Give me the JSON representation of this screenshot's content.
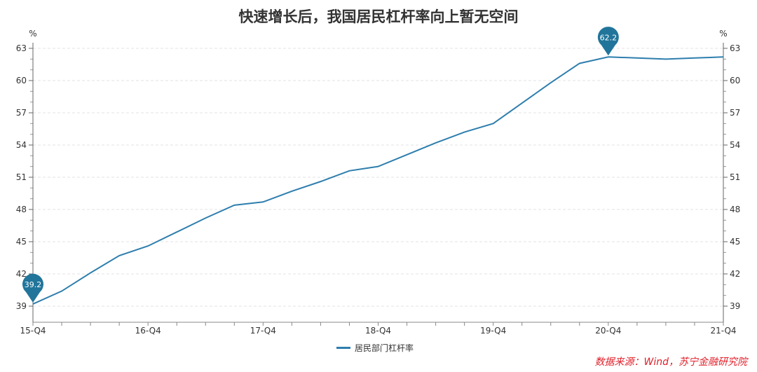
{
  "chart_data": {
    "type": "line",
    "title": "快速增长后，我国居民杠杆率向上暂无空间",
    "ylabel_left": "%",
    "ylabel_right": "%",
    "ylim": [
      39,
      63
    ],
    "yticks": [
      39,
      42,
      45,
      48,
      51,
      54,
      57,
      60,
      63
    ],
    "x_tick_labels": [
      "15-Q4",
      "16-Q4",
      "17-Q4",
      "18-Q4",
      "19-Q4",
      "20-Q4",
      "21-Q4"
    ],
    "grid": true,
    "legend_position": "bottom",
    "series": [
      {
        "name": "居民部门杠杆率",
        "color": "#2e7eae",
        "x": [
          "15-Q4",
          "16-Q1",
          "16-Q2",
          "16-Q3",
          "16-Q4",
          "17-Q1",
          "17-Q2",
          "17-Q3",
          "17-Q4",
          "18-Q1",
          "18-Q2",
          "18-Q3",
          "18-Q4",
          "19-Q1",
          "19-Q2",
          "19-Q3",
          "19-Q4",
          "20-Q1",
          "20-Q2",
          "20-Q3",
          "20-Q4",
          "21-Q1",
          "21-Q2",
          "21-Q3",
          "21-Q4"
        ],
        "values": [
          39.2,
          40.4,
          42.1,
          43.7,
          44.6,
          45.9,
          47.2,
          48.4,
          48.7,
          49.7,
          50.6,
          51.6,
          52.0,
          53.1,
          54.2,
          55.2,
          56.0,
          57.9,
          59.8,
          61.6,
          62.2,
          62.1,
          62.0,
          62.1,
          62.2
        ]
      }
    ],
    "annotations": [
      {
        "x": "15-Q4",
        "value": "39.2",
        "type": "min"
      },
      {
        "x": "20-Q4",
        "value": "62.2",
        "type": "max"
      }
    ],
    "marker_color": "#21759b"
  },
  "source": "数据来源：Wind，苏宁金融研究院"
}
